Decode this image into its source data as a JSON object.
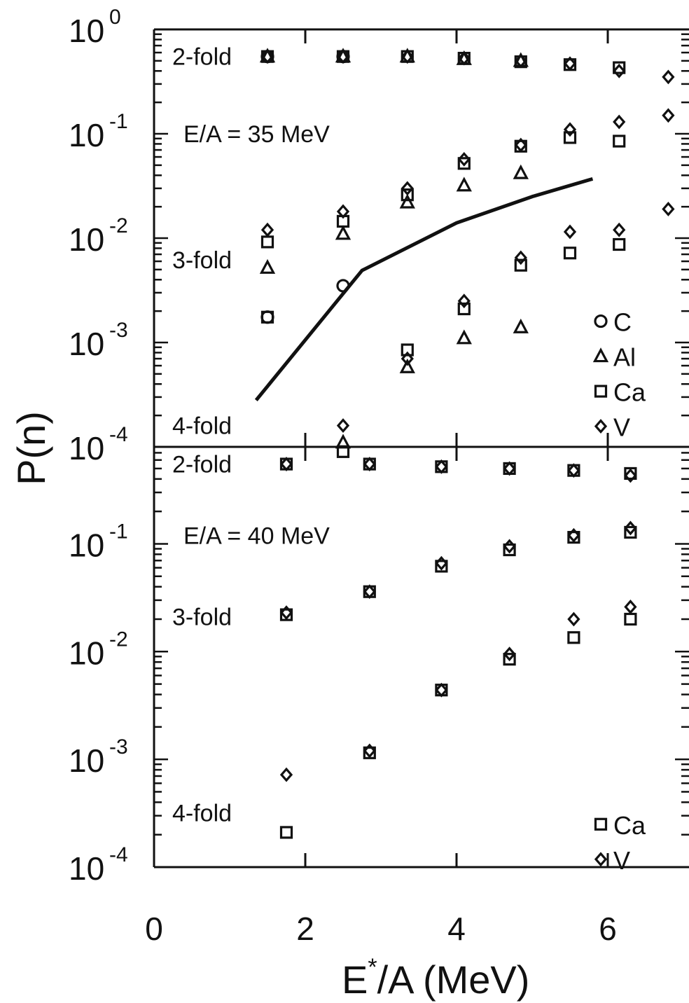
{
  "chart_data": [
    {
      "type": "scatter",
      "panel": "top",
      "annotation": "E/A = 35 MeV",
      "yscale": "log",
      "ylim": [
        0.0001,
        1
      ],
      "xlim": [
        0,
        7
      ],
      "y_tick_labels": [
        {
          "base": "10",
          "exp": "0",
          "value": 1
        },
        {
          "base": "10",
          "exp": "-1",
          "value": 0.1
        },
        {
          "base": "10",
          "exp": "-2",
          "value": 0.01
        },
        {
          "base": "10",
          "exp": "-3",
          "value": 0.001
        },
        {
          "base": "10",
          "exp": "-4",
          "value": 0.0001
        }
      ],
      "fold_labels": [
        {
          "text": "2-fold",
          "y": 0.55
        },
        {
          "text": "3-fold",
          "y": 0.0062
        },
        {
          "text": "4-fold",
          "y": 0.00016
        }
      ],
      "legend": [
        {
          "symbol": "circle",
          "label": "C"
        },
        {
          "symbol": "triangle",
          "label": "Al"
        },
        {
          "symbol": "square",
          "label": "Ca"
        },
        {
          "symbol": "diamond",
          "label": "V"
        }
      ],
      "series": [
        {
          "name": "C",
          "symbol": "circle",
          "points": [
            [
              1.5,
              0.55
            ],
            [
              1.5,
              0.00175
            ],
            [
              2.5,
              0.55
            ],
            [
              2.5,
              0.0035
            ]
          ]
        },
        {
          "name": "Al",
          "symbol": "triangle",
          "points": [
            [
              1.5,
              0.55
            ],
            [
              1.5,
              0.0052
            ],
            [
              2.5,
              0.55
            ],
            [
              2.5,
              0.011
            ],
            [
              2.5,
              0.00011
            ],
            [
              3.35,
              0.55
            ],
            [
              3.35,
              0.022
            ],
            [
              3.35,
              0.00058
            ],
            [
              4.1,
              0.52
            ],
            [
              4.1,
              0.032
            ],
            [
              4.1,
              0.0011
            ],
            [
              4.85,
              0.5
            ],
            [
              4.85,
              0.042
            ],
            [
              4.85,
              0.0014
            ]
          ]
        },
        {
          "name": "Ca",
          "symbol": "square",
          "points": [
            [
              1.5,
              0.55
            ],
            [
              1.5,
              0.0092
            ],
            [
              1.5,
              0.00175
            ],
            [
              2.5,
              0.55
            ],
            [
              2.5,
              0.0145
            ],
            [
              2.5,
              9e-05
            ],
            [
              3.35,
              0.55
            ],
            [
              3.35,
              0.026
            ],
            [
              3.35,
              0.00085
            ],
            [
              4.1,
              0.53
            ],
            [
              4.1,
              0.052
            ],
            [
              4.1,
              0.0021
            ],
            [
              4.85,
              0.49
            ],
            [
              4.85,
              0.076
            ],
            [
              4.85,
              0.0055
            ],
            [
              5.5,
              0.46
            ],
            [
              5.5,
              0.092
            ],
            [
              5.5,
              0.0072
            ],
            [
              6.15,
              0.43
            ],
            [
              6.15,
              0.085
            ],
            [
              6.15,
              0.0087
            ]
          ]
        },
        {
          "name": "V",
          "symbol": "diamond",
          "points": [
            [
              1.5,
              0.55
            ],
            [
              1.5,
              0.012
            ],
            [
              2.5,
              0.55
            ],
            [
              2.5,
              0.018
            ],
            [
              2.5,
              0.00016
            ],
            [
              3.35,
              0.55
            ],
            [
              3.35,
              0.03
            ],
            [
              3.35,
              0.0007
            ],
            [
              4.1,
              0.53
            ],
            [
              4.1,
              0.057
            ],
            [
              4.1,
              0.0025
            ],
            [
              4.85,
              0.5
            ],
            [
              4.85,
              0.078
            ],
            [
              4.85,
              0.0065
            ],
            [
              5.5,
              0.47
            ],
            [
              5.5,
              0.11
            ],
            [
              5.5,
              0.0115
            ],
            [
              6.15,
              0.4
            ],
            [
              6.15,
              0.13
            ],
            [
              6.15,
              0.012
            ],
            [
              6.8,
              0.35
            ],
            [
              6.8,
              0.15
            ],
            [
              6.8,
              0.019
            ]
          ]
        }
      ],
      "curve": {
        "x": [
          1.35,
          2.75,
          4.0,
          5.0,
          5.8
        ],
        "y": [
          0.00028,
          0.0049,
          0.014,
          0.025,
          0.037
        ]
      }
    },
    {
      "type": "scatter",
      "panel": "bottom",
      "annotation": "E/A = 40 MeV",
      "yscale": "log",
      "ylim": [
        0.0001,
        1
      ],
      "xlim": [
        0,
        7
      ],
      "x_tick_labels": [
        "0",
        "2",
        "4",
        "6"
      ],
      "y_tick_labels": [
        {
          "base": "10",
          "exp": "-1",
          "value": 0.1
        },
        {
          "base": "10",
          "exp": "-2",
          "value": 0.01
        },
        {
          "base": "10",
          "exp": "-3",
          "value": 0.001
        },
        {
          "base": "10",
          "exp": "-4",
          "value": 0.0001
        }
      ],
      "fold_labels": [
        {
          "text": "2-fold",
          "y": 0.55
        },
        {
          "text": "3-fold",
          "y": 0.021
        },
        {
          "text": "4-fold",
          "y": 0.00032
        }
      ],
      "legend": [
        {
          "symbol": "square",
          "label": "Ca"
        },
        {
          "symbol": "diamond",
          "label": "V"
        }
      ],
      "series": [
        {
          "name": "Ca",
          "symbol": "square",
          "points": [
            [
              1.75,
              0.55
            ],
            [
              1.75,
              0.022
            ],
            [
              1.75,
              0.00021
            ],
            [
              2.85,
              0.55
            ],
            [
              2.85,
              0.036
            ],
            [
              2.85,
              0.00115
            ],
            [
              3.8,
              0.52
            ],
            [
              3.8,
              0.062
            ],
            [
              3.8,
              0.0044
            ],
            [
              4.7,
              0.5
            ],
            [
              4.7,
              0.088
            ],
            [
              4.7,
              0.0085
            ],
            [
              5.55,
              0.48
            ],
            [
              5.55,
              0.115
            ],
            [
              5.55,
              0.0135
            ],
            [
              6.3,
              0.45
            ],
            [
              6.3,
              0.128
            ],
            [
              6.3,
              0.02
            ]
          ]
        },
        {
          "name": "V",
          "symbol": "diamond",
          "points": [
            [
              1.75,
              0.55
            ],
            [
              1.75,
              0.023
            ],
            [
              1.75,
              0.00072
            ],
            [
              2.85,
              0.55
            ],
            [
              2.85,
              0.036
            ],
            [
              2.85,
              0.0012
            ],
            [
              3.8,
              0.52
            ],
            [
              3.8,
              0.066
            ],
            [
              3.8,
              0.0044
            ],
            [
              4.7,
              0.5
            ],
            [
              4.7,
              0.095
            ],
            [
              4.7,
              0.0095
            ],
            [
              5.55,
              0.48
            ],
            [
              5.55,
              0.12
            ],
            [
              5.55,
              0.02
            ],
            [
              6.3,
              0.43
            ],
            [
              6.3,
              0.14
            ],
            [
              6.3,
              0.026
            ]
          ]
        }
      ]
    }
  ],
  "axes": {
    "ylabel": "P(n)",
    "xlabel_base": "E",
    "xlabel_sup": "*",
    "xlabel_rest": "/A  (MeV)"
  }
}
